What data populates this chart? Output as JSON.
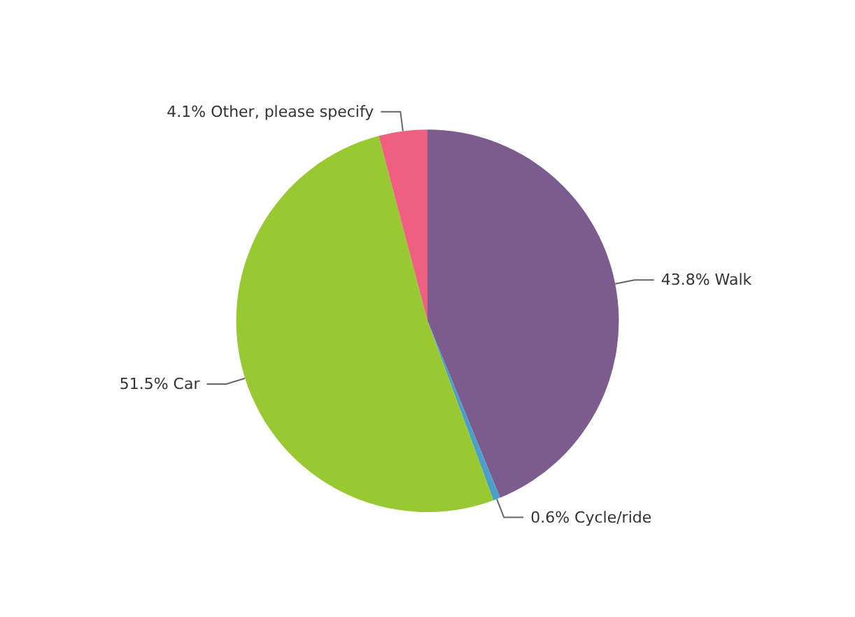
{
  "chart_data": {
    "type": "pie",
    "categories": [
      "Walk",
      "Cycle/ride",
      "Car",
      "Other, please specify"
    ],
    "values": [
      43.8,
      0.6,
      51.5,
      4.1
    ],
    "colors": [
      "#7b5c8c",
      "#4aa0c8",
      "#99c932",
      "#ee5f80"
    ],
    "value_labels": [
      "43.8%",
      "0.6%",
      "51.5%",
      "4.1%"
    ]
  }
}
